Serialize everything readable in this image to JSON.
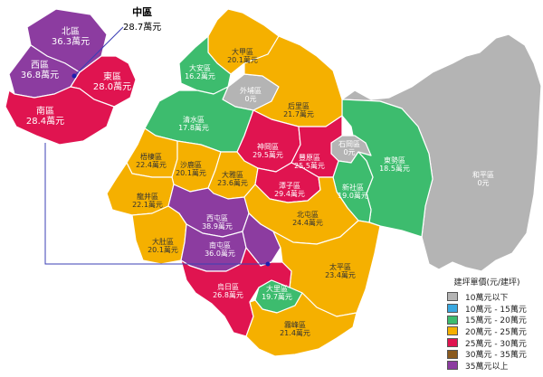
{
  "legend": {
    "title": "建坪單價(元/建坪)",
    "items": [
      {
        "label": "10萬元以下",
        "color": "#b4b4b4"
      },
      {
        "label": "10萬元 - 15萬元",
        "color": "#3aa8e0"
      },
      {
        "label": "15萬元 - 20萬元",
        "color": "#3dbc6e"
      },
      {
        "label": "20萬元 - 25萬元",
        "color": "#f5b000"
      },
      {
        "label": "25萬元 - 30萬元",
        "color": "#e01450"
      },
      {
        "label": "30萬元 - 35萬元",
        "color": "#8a5a1e"
      },
      {
        "label": "35萬元以上",
        "color": "#8c3ca0"
      }
    ]
  },
  "inset": {
    "callout": {
      "name": "中區",
      "value": "28.7萬元"
    },
    "districts": [
      {
        "key": "north",
        "name": "北區",
        "value": "36.3萬元",
        "color": "#8c3ca0"
      },
      {
        "key": "west",
        "name": "西區",
        "value": "36.8萬元",
        "color": "#8c3ca0"
      },
      {
        "key": "east",
        "name": "東區",
        "value": "28.0萬元",
        "color": "#e01450"
      },
      {
        "key": "south",
        "name": "南區",
        "value": "28.4萬元",
        "color": "#e01450"
      }
    ]
  },
  "districts": [
    {
      "key": "dajia",
      "name": "大甲區",
      "value": "20.1萬元",
      "color": "#f5b000"
    },
    {
      "key": "daan",
      "name": "大安區",
      "value": "16.2萬元",
      "color": "#3dbc6e"
    },
    {
      "key": "waipu",
      "name": "外埔區",
      "value": "0元",
      "color": "#b4b4b4"
    },
    {
      "key": "houli",
      "name": "后里區",
      "value": "21.7萬元",
      "color": "#f5b000"
    },
    {
      "key": "qingshui",
      "name": "清水區",
      "value": "17.8萬元",
      "color": "#3dbc6e"
    },
    {
      "key": "shengang",
      "name": "神岡區",
      "value": "29.5萬元",
      "color": "#e01450"
    },
    {
      "key": "fengyuan",
      "name": "豐原區",
      "value": "25.5萬元",
      "color": "#e01450"
    },
    {
      "key": "shigang",
      "name": "石岡區",
      "value": "0元",
      "color": "#b4b4b4"
    },
    {
      "key": "dongshi",
      "name": "東勢區",
      "value": "18.5萬元",
      "color": "#3dbc6e"
    },
    {
      "key": "heping",
      "name": "和平區",
      "value": "0元",
      "color": "#b4b4b4"
    },
    {
      "key": "wuqi",
      "name": "梧棲區",
      "value": "22.4萬元",
      "color": "#f5b000"
    },
    {
      "key": "shalu",
      "name": "沙鹿區",
      "value": "20.1萬元",
      "color": "#f5b000"
    },
    {
      "key": "daya",
      "name": "大雅區",
      "value": "23.6萬元",
      "color": "#f5b000"
    },
    {
      "key": "tanzi",
      "name": "潭子區",
      "value": "29.4萬元",
      "color": "#e01450"
    },
    {
      "key": "xinshe",
      "name": "新社區",
      "value": "19.0萬元",
      "color": "#3dbc6e"
    },
    {
      "key": "longjing",
      "name": "龍井區",
      "value": "22.1萬元",
      "color": "#f5b000"
    },
    {
      "key": "xitun",
      "name": "西屯區",
      "value": "38.9萬元",
      "color": "#8c3ca0"
    },
    {
      "key": "beitun",
      "name": "北屯區",
      "value": "24.4萬元",
      "color": "#f5b000"
    },
    {
      "key": "dadu",
      "name": "大肚區",
      "value": "20.1萬元",
      "color": "#f5b000"
    },
    {
      "key": "nantun",
      "name": "南屯區",
      "value": "36.0萬元",
      "color": "#8c3ca0"
    },
    {
      "key": "taiping",
      "name": "太平區",
      "value": "23.4萬元",
      "color": "#f5b000"
    },
    {
      "key": "wuri",
      "name": "烏日區",
      "value": "26.8萬元",
      "color": "#e01450"
    },
    {
      "key": "dali",
      "name": "大里區",
      "value": "19.7萬元",
      "color": "#3dbc6e"
    },
    {
      "key": "wufeng",
      "name": "霧峰區",
      "value": "21.4萬元",
      "color": "#f5b000"
    }
  ]
}
